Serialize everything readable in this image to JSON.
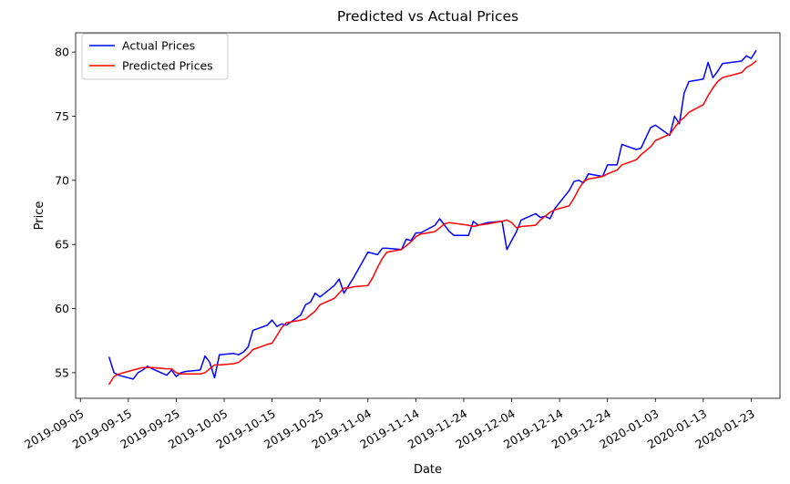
{
  "chart_data": {
    "type": "line",
    "title": "Predicted vs Actual Prices",
    "xlabel": "Date",
    "ylabel": "Price",
    "x_range": [
      "2019-09-04",
      "2020-01-29"
    ],
    "ylim": [
      53,
      81.5
    ],
    "grid": false,
    "legend_position": "top-left",
    "x_ticks": [
      "2019-09-05",
      "2019-09-15",
      "2019-09-25",
      "2019-10-05",
      "2019-10-15",
      "2019-10-25",
      "2019-11-04",
      "2019-11-14",
      "2019-11-24",
      "2019-12-04",
      "2019-12-14",
      "2019-12-24",
      "2020-01-03",
      "2020-01-13",
      "2020-01-23"
    ],
    "y_ticks": [
      55,
      60,
      65,
      70,
      75,
      80
    ],
    "series": [
      {
        "name": "Actual Prices",
        "color": "#0000ff",
        "points": [
          [
            "2019-09-11",
            56.2
          ],
          [
            "2019-09-12",
            55.0
          ],
          [
            "2019-09-13",
            54.8
          ],
          [
            "2019-09-16",
            54.5
          ],
          [
            "2019-09-17",
            55.0
          ],
          [
            "2019-09-18",
            55.2
          ],
          [
            "2019-09-19",
            55.5
          ],
          [
            "2019-09-20",
            55.3
          ],
          [
            "2019-09-23",
            54.8
          ],
          [
            "2019-09-24",
            55.2
          ],
          [
            "2019-09-25",
            54.7
          ],
          [
            "2019-09-26",
            55.0
          ],
          [
            "2019-09-27",
            55.1
          ],
          [
            "2019-09-30",
            55.2
          ],
          [
            "2019-10-01",
            56.3
          ],
          [
            "2019-10-02",
            55.8
          ],
          [
            "2019-10-03",
            54.6
          ],
          [
            "2019-10-04",
            56.4
          ],
          [
            "2019-10-07",
            56.5
          ],
          [
            "2019-10-08",
            56.4
          ],
          [
            "2019-10-09",
            56.6
          ],
          [
            "2019-10-10",
            57.0
          ],
          [
            "2019-10-11",
            58.3
          ],
          [
            "2019-10-14",
            58.7
          ],
          [
            "2019-10-15",
            59.1
          ],
          [
            "2019-10-16",
            58.6
          ],
          [
            "2019-10-17",
            58.8
          ],
          [
            "2019-10-18",
            58.7
          ],
          [
            "2019-10-21",
            59.5
          ],
          [
            "2019-10-22",
            60.3
          ],
          [
            "2019-10-23",
            60.5
          ],
          [
            "2019-10-24",
            61.2
          ],
          [
            "2019-10-25",
            60.9
          ],
          [
            "2019-10-28",
            61.8
          ],
          [
            "2019-10-29",
            62.3
          ],
          [
            "2019-10-30",
            61.2
          ],
          [
            "2019-10-31",
            61.8
          ],
          [
            "2019-11-01",
            62.4
          ],
          [
            "2019-11-04",
            64.4
          ],
          [
            "2019-11-05",
            64.3
          ],
          [
            "2019-11-06",
            64.2
          ],
          [
            "2019-11-07",
            64.7
          ],
          [
            "2019-11-08",
            64.7
          ],
          [
            "2019-11-11",
            64.6
          ],
          [
            "2019-11-12",
            65.4
          ],
          [
            "2019-11-13",
            65.3
          ],
          [
            "2019-11-14",
            65.9
          ],
          [
            "2019-11-15",
            65.9
          ],
          [
            "2019-11-18",
            66.5
          ],
          [
            "2019-11-19",
            67.0
          ],
          [
            "2019-11-20",
            66.5
          ],
          [
            "2019-11-21",
            66.0
          ],
          [
            "2019-11-22",
            65.7
          ],
          [
            "2019-11-25",
            65.7
          ],
          [
            "2019-11-26",
            66.8
          ],
          [
            "2019-11-27",
            66.5
          ],
          [
            "2019-11-29",
            66.7
          ],
          [
            "2019-12-02",
            66.8
          ],
          [
            "2019-12-03",
            64.6
          ],
          [
            "2019-12-04",
            65.3
          ],
          [
            "2019-12-05",
            66.0
          ],
          [
            "2019-12-06",
            66.9
          ],
          [
            "2019-12-09",
            67.4
          ],
          [
            "2019-12-10",
            67.1
          ],
          [
            "2019-12-11",
            67.2
          ],
          [
            "2019-12-12",
            67.0
          ],
          [
            "2019-12-13",
            67.8
          ],
          [
            "2019-12-16",
            69.2
          ],
          [
            "2019-12-17",
            69.9
          ],
          [
            "2019-12-18",
            70.0
          ],
          [
            "2019-12-19",
            69.8
          ],
          [
            "2019-12-20",
            70.5
          ],
          [
            "2019-12-23",
            70.3
          ],
          [
            "2019-12-24",
            71.2
          ],
          [
            "2019-12-26",
            71.2
          ],
          [
            "2019-12-27",
            72.8
          ],
          [
            "2019-12-30",
            72.4
          ],
          [
            "2019-12-31",
            72.5
          ],
          [
            "2020-01-02",
            74.1
          ],
          [
            "2020-01-03",
            74.3
          ],
          [
            "2020-01-06",
            73.5
          ],
          [
            "2020-01-07",
            75.0
          ],
          [
            "2020-01-08",
            74.4
          ],
          [
            "2020-01-09",
            76.8
          ],
          [
            "2020-01-10",
            77.7
          ],
          [
            "2020-01-13",
            77.9
          ],
          [
            "2020-01-14",
            79.2
          ],
          [
            "2020-01-15",
            78.0
          ],
          [
            "2020-01-16",
            78.5
          ],
          [
            "2020-01-17",
            79.1
          ],
          [
            "2020-01-21",
            79.3
          ],
          [
            "2020-01-22",
            79.7
          ],
          [
            "2020-01-23",
            79.5
          ],
          [
            "2020-01-24",
            80.1
          ]
        ]
      },
      {
        "name": "Predicted Prices",
        "color": "#ff0000",
        "points": [
          [
            "2019-09-11",
            54.1
          ],
          [
            "2019-09-12",
            54.7
          ],
          [
            "2019-09-13",
            54.9
          ],
          [
            "2019-09-16",
            55.2
          ],
          [
            "2019-09-17",
            55.3
          ],
          [
            "2019-09-18",
            55.4
          ],
          [
            "2019-09-19",
            55.4
          ],
          [
            "2019-09-20",
            55.4
          ],
          [
            "2019-09-23",
            55.3
          ],
          [
            "2019-09-24",
            55.3
          ],
          [
            "2019-09-25",
            55.0
          ],
          [
            "2019-09-26",
            54.9
          ],
          [
            "2019-09-27",
            54.9
          ],
          [
            "2019-09-30",
            54.9
          ],
          [
            "2019-10-01",
            55.0
          ],
          [
            "2019-10-02",
            55.3
          ],
          [
            "2019-10-03",
            55.6
          ],
          [
            "2019-10-04",
            55.6
          ],
          [
            "2019-10-07",
            55.7
          ],
          [
            "2019-10-08",
            55.8
          ],
          [
            "2019-10-09",
            56.1
          ],
          [
            "2019-10-10",
            56.4
          ],
          [
            "2019-10-11",
            56.8
          ],
          [
            "2019-10-14",
            57.2
          ],
          [
            "2019-10-15",
            57.3
          ],
          [
            "2019-10-16",
            57.9
          ],
          [
            "2019-10-17",
            58.5
          ],
          [
            "2019-10-18",
            58.9
          ],
          [
            "2019-10-21",
            59.1
          ],
          [
            "2019-10-22",
            59.2
          ],
          [
            "2019-10-23",
            59.5
          ],
          [
            "2019-10-24",
            59.8
          ],
          [
            "2019-10-25",
            60.3
          ],
          [
            "2019-10-28",
            60.8
          ],
          [
            "2019-10-29",
            61.2
          ],
          [
            "2019-10-30",
            61.6
          ],
          [
            "2019-10-31",
            61.6
          ],
          [
            "2019-11-01",
            61.7
          ],
          [
            "2019-11-04",
            61.8
          ],
          [
            "2019-11-05",
            62.4
          ],
          [
            "2019-11-06",
            63.2
          ],
          [
            "2019-11-07",
            63.9
          ],
          [
            "2019-11-08",
            64.4
          ],
          [
            "2019-11-11",
            64.6
          ],
          [
            "2019-11-12",
            64.9
          ],
          [
            "2019-11-13",
            65.2
          ],
          [
            "2019-11-14",
            65.6
          ],
          [
            "2019-11-15",
            65.8
          ],
          [
            "2019-11-18",
            66.0
          ],
          [
            "2019-11-19",
            66.3
          ],
          [
            "2019-11-20",
            66.6
          ],
          [
            "2019-11-21",
            66.7
          ],
          [
            "2019-11-25",
            66.5
          ],
          [
            "2019-11-26",
            66.4
          ],
          [
            "2019-11-27",
            66.5
          ],
          [
            "2019-11-29",
            66.6
          ],
          [
            "2019-12-02",
            66.8
          ],
          [
            "2019-12-03",
            66.9
          ],
          [
            "2019-12-04",
            66.7
          ],
          [
            "2019-12-05",
            66.3
          ],
          [
            "2019-12-06",
            66.4
          ],
          [
            "2019-12-09",
            66.5
          ],
          [
            "2019-12-10",
            66.9
          ],
          [
            "2019-12-11",
            67.2
          ],
          [
            "2019-12-12",
            67.5
          ],
          [
            "2019-12-13",
            67.7
          ],
          [
            "2019-12-16",
            68.0
          ],
          [
            "2019-12-17",
            68.6
          ],
          [
            "2019-12-18",
            69.3
          ],
          [
            "2019-12-19",
            69.9
          ],
          [
            "2019-12-20",
            70.1
          ],
          [
            "2019-12-23",
            70.3
          ],
          [
            "2019-12-24",
            70.5
          ],
          [
            "2019-12-26",
            70.8
          ],
          [
            "2019-12-27",
            71.2
          ],
          [
            "2019-12-30",
            71.6
          ],
          [
            "2019-12-31",
            72.0
          ],
          [
            "2020-01-02",
            72.6
          ],
          [
            "2020-01-03",
            73.1
          ],
          [
            "2020-01-06",
            73.6
          ],
          [
            "2020-01-07",
            74.1
          ],
          [
            "2020-01-08",
            74.6
          ],
          [
            "2020-01-09",
            74.9
          ],
          [
            "2020-01-10",
            75.3
          ],
          [
            "2020-01-13",
            75.9
          ],
          [
            "2020-01-14",
            76.6
          ],
          [
            "2020-01-15",
            77.2
          ],
          [
            "2020-01-16",
            77.7
          ],
          [
            "2020-01-17",
            78.0
          ],
          [
            "2020-01-21",
            78.4
          ],
          [
            "2020-01-22",
            78.8
          ],
          [
            "2020-01-23",
            79.0
          ],
          [
            "2020-01-24",
            79.3
          ]
        ]
      }
    ]
  }
}
